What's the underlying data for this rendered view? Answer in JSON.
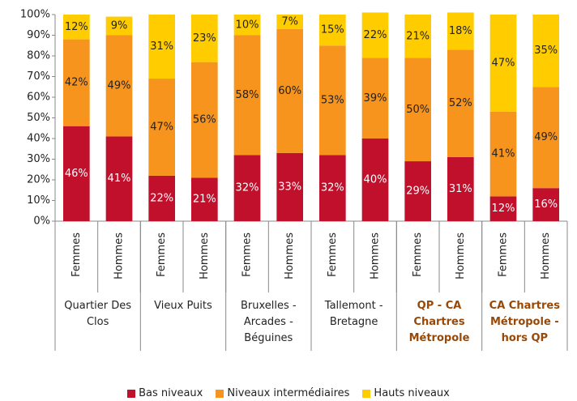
{
  "chart_data": {
    "type": "stacked_bar",
    "categories": [
      "Femmes",
      "Hommes",
      "Femmes",
      "Hommes",
      "Femmes",
      "Hommes",
      "Femmes",
      "Hommes",
      "Femmes",
      "Hommes",
      "Femmes",
      "Hommes"
    ],
    "groups": [
      {
        "label": "Quartier Des Clos",
        "highlight": false
      },
      {
        "label": "Vieux Puits",
        "highlight": false
      },
      {
        "label": "Bruxelles - Arcades - Béguines",
        "highlight": false
      },
      {
        "label": "Tallemont - Bretagne",
        "highlight": false
      },
      {
        "label": "QP - CA Chartres Métropole",
        "highlight": true
      },
      {
        "label": "CA Chartres Métropole - hors QP",
        "highlight": true
      }
    ],
    "highlight_color": "#984807",
    "series": [
      {
        "name": "Bas niveaux",
        "color": "#c0102b",
        "label_color": "#ffffff",
        "values": [
          46,
          41,
          22,
          21,
          32,
          33,
          32,
          40,
          29,
          31,
          12,
          16
        ],
        "value_labels": [
          "46%",
          "41%",
          "22%",
          "21%",
          "32%",
          "33%",
          "32%",
          "40%",
          "29%",
          "31%",
          "12%",
          "16%"
        ]
      },
      {
        "name": "Niveaux intermédiaires",
        "color": "#f7941d",
        "label_color": "#222222",
        "values": [
          42,
          49,
          47,
          56,
          58,
          60,
          53,
          39,
          50,
          52,
          41,
          49
        ],
        "value_labels": [
          "42%",
          "49%",
          "47%",
          "56%",
          "58%",
          "60%",
          "53%",
          "39%",
          "50%",
          "52%",
          "41%",
          "49%"
        ]
      },
      {
        "name": "Hauts niveaux",
        "color": "#ffcc00",
        "label_color": "#222222",
        "values": [
          12,
          9,
          31,
          23,
          10,
          7,
          15,
          22,
          21,
          18,
          47,
          35
        ],
        "value_labels": [
          "12%",
          "9%",
          "31%",
          "23%",
          "10%",
          "7%",
          "15%",
          "22%",
          "21%",
          "18%",
          "47%",
          "35%"
        ]
      }
    ],
    "ylim": [
      0,
      100
    ],
    "yticks": [
      {
        "value": 0,
        "label": "0%"
      },
      {
        "value": 10,
        "label": "10%"
      },
      {
        "value": 20,
        "label": "20%"
      },
      {
        "value": 30,
        "label": "30%"
      },
      {
        "value": 40,
        "label": "40%"
      },
      {
        "value": 50,
        "label": "50%"
      },
      {
        "value": 60,
        "label": "60%"
      },
      {
        "value": 70,
        "label": "70%"
      },
      {
        "value": 80,
        "label": "80%"
      },
      {
        "value": 90,
        "label": "90%"
      },
      {
        "value": 100,
        "label": "100%"
      }
    ],
    "legend": "bottom"
  }
}
